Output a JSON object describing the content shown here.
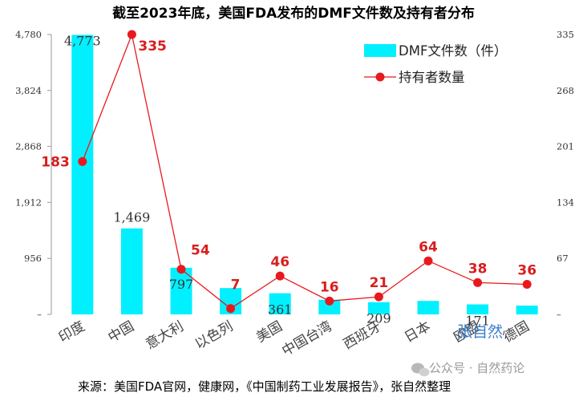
{
  "chart_data": {
    "type": "bar+line",
    "title": "截至2023年底，美国FDA发布的DMF文件数及持有者分布",
    "categories": [
      "印度",
      "中国",
      "意大利",
      "以色列",
      "美国",
      "中国台湾",
      "西班牙",
      "日本",
      "欧盟",
      "德国"
    ],
    "series": [
      {
        "name": "DMF文件数（件）",
        "type": "bar",
        "axis": "left",
        "color": "#00f0ff",
        "values": [
          4773,
          1469,
          797,
          450,
          361,
          250,
          209,
          230,
          171,
          150
        ],
        "labels": [
          "4,773",
          "1,469",
          "797",
          "",
          "361",
          "",
          "209",
          "",
          "171",
          ""
        ]
      },
      {
        "name": "持有者数量",
        "type": "line",
        "axis": "right",
        "color": "#e8191d",
        "values": [
          183,
          335,
          54,
          7,
          46,
          16,
          21,
          64,
          38,
          36
        ],
        "labels": [
          "183",
          "335",
          "54",
          "7",
          "46",
          "16",
          "21",
          "64",
          "38",
          "36"
        ]
      }
    ],
    "y_left": {
      "min": 0,
      "max": 4780,
      "ticks": [
        "–",
        "956",
        "1,912",
        "2,868",
        "3,824",
        "4,780"
      ]
    },
    "y_right": {
      "min": 0,
      "max": 335,
      "ticks": [
        "–",
        "67",
        "134",
        "201",
        "268",
        "335"
      ]
    },
    "legend_position": "top-right"
  },
  "footer": {
    "source": "来源：美国FDA官网，健康网，《中国制药工业发展报告》，张自然整理",
    "watermark": "公众号 · 自然药论",
    "signature": "张自然"
  }
}
